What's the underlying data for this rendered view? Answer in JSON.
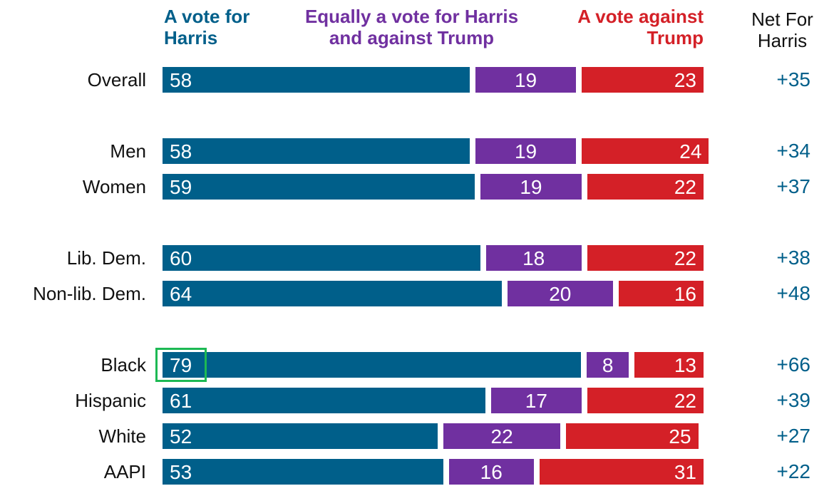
{
  "chart_data": {
    "type": "stacked-bar",
    "categories": [
      "Overall",
      null,
      "Men",
      "Women",
      null,
      "Lib. Dem.",
      "Non-lib. Dem.",
      null,
      "Black",
      "Hispanic",
      "White",
      "AAPI"
    ],
    "series": [
      {
        "name": "A vote for Harris",
        "color": "#005f8a",
        "values": [
          58,
          null,
          58,
          59,
          null,
          60,
          64,
          null,
          79,
          61,
          52,
          53
        ]
      },
      {
        "name": "Equally a vote for Harris and against Trump",
        "color": "#7030a0",
        "values": [
          19,
          null,
          19,
          19,
          null,
          18,
          20,
          null,
          8,
          17,
          22,
          16
        ]
      },
      {
        "name": "A vote against Trump",
        "color": "#d42027",
        "values": [
          23,
          null,
          24,
          22,
          null,
          22,
          16,
          null,
          13,
          22,
          25,
          31
        ]
      }
    ],
    "xlim": [
      0,
      100
    ],
    "net": {
      "title": "Net For Harris",
      "values": [
        35,
        null,
        34,
        37,
        null,
        38,
        48,
        null,
        66,
        39,
        27,
        22
      ],
      "value_labels": [
        "+35",
        null,
        "+34",
        "+37",
        null,
        "+38",
        "+48",
        null,
        "+66",
        "+39",
        "+27",
        "+22"
      ]
    }
  }
}
